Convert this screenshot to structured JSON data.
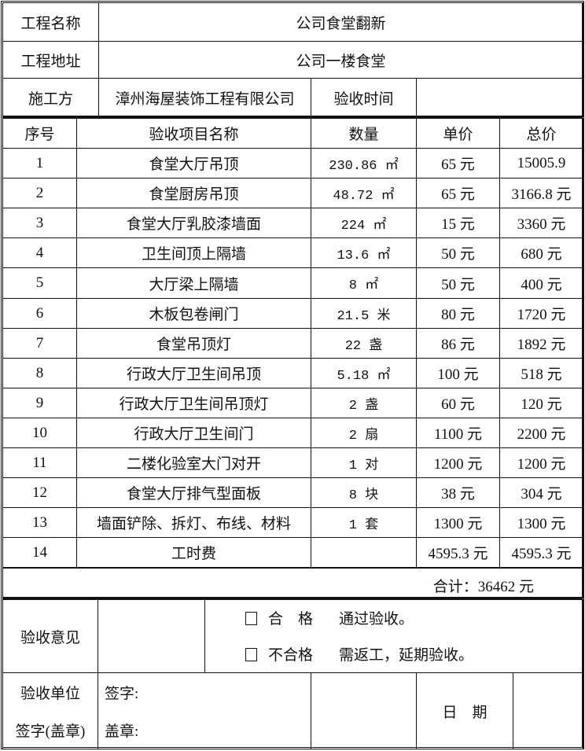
{
  "header": {
    "project_name_label": "工程名称",
    "project_name": "公司食堂翻新",
    "project_address_label": "工程地址",
    "project_address": "公司一楼食堂",
    "contractor_label": "施工方",
    "contractor": "漳州海屋装饰工程有限公司",
    "acceptance_time_label": "验收时间",
    "acceptance_time": ""
  },
  "table": {
    "columns": [
      "序号",
      "验收项目名称",
      "数量",
      "单价",
      "总价"
    ],
    "rows": [
      [
        "1",
        "食堂大厅吊顶",
        "230.86 ㎡",
        "65 元",
        "15005.9"
      ],
      [
        "2",
        "食堂厨房吊顶",
        "48.72 ㎡",
        "65 元",
        "3166.8 元"
      ],
      [
        "3",
        "食堂大厅乳胶漆墙面",
        "224 ㎡",
        "15 元",
        "3360 元"
      ],
      [
        "4",
        "卫生间顶上隔墙",
        "13.6 ㎡",
        "50 元",
        "680 元"
      ],
      [
        "5",
        "大厅梁上隔墙",
        "8 ㎡",
        "50 元",
        "400 元"
      ],
      [
        "6",
        "木板包卷闸门",
        "21.5 米",
        "80 元",
        "1720 元"
      ],
      [
        "7",
        "食堂吊顶灯",
        "22 盏",
        "86 元",
        "1892 元"
      ],
      [
        "8",
        "行政大厅卫生间吊顶",
        "5.18 ㎡",
        "100 元",
        "518 元"
      ],
      [
        "9",
        "行政大厅卫生间吊顶灯",
        "2 盏",
        "60 元",
        "120 元"
      ],
      [
        "10",
        "行政大厅卫生间门",
        "2 扇",
        "1100 元",
        "2200 元"
      ],
      [
        "11",
        "二楼化验室大门对开",
        "1 对",
        "1200 元",
        "1200 元"
      ],
      [
        "12",
        "食堂大厅排气型面板",
        "8 块",
        "38 元",
        "304 元"
      ],
      [
        "13",
        "墙面铲除、拆灯、布线、材料",
        "1 套",
        "1300 元",
        "1300 元"
      ],
      [
        "14",
        "工时费",
        "",
        "4595.3 元",
        "4595.3 元"
      ]
    ],
    "total": "合计：36462 元"
  },
  "opinion": {
    "label": "验收意见",
    "pass_label": "合　格",
    "pass_text": "通过验收。",
    "fail_label": "不合格",
    "fail_text": "需返工，延期验收。"
  },
  "sign": {
    "label_line1": "验收单位",
    "label_line2": "签字(盖章)",
    "signature": "签字:",
    "seal": "盖章:",
    "date_label": "日　期"
  }
}
